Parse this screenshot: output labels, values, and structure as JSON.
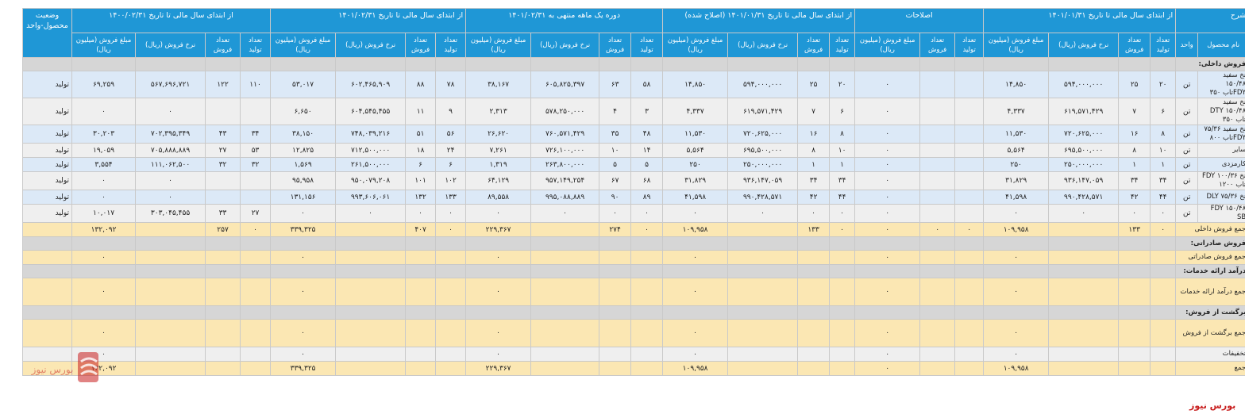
{
  "headers": {
    "sharh": "شرح",
    "adj_from_start": "از ابتدای سال مالی تا تاریخ ۱۴۰۱/۰۱/۳۱",
    "corrections": "اصلاحات",
    "corrected": "از ابتدای سال مالی تا تاریخ ۱۴۰۱/۰۱/۳۱ (اصلاح شده)",
    "one_month": "دوره یک ماهه منتهی به ۱۴۰۱/۰۲/۳۱",
    "to_date": "از ابتدای سال مالی تا تاریخ ۱۴۰۱/۰۲/۳۱",
    "prev_year": "از ابتدای سال مالی تا تاریخ ۱۴۰۰/۰۲/۳۱",
    "status": "وضعیت محصول-واحد"
  },
  "subheaders": {
    "product_name": "نام محصول",
    "unit": "واحد",
    "prod_qty": "تعداد تولید",
    "sale_qty": "تعداد فروش",
    "rate": "نرخ فروش (ریال)",
    "amount": "مبلغ فروش (میلیون ریال)"
  },
  "sections": {
    "domestic": "فروش داخلی:",
    "export": "فروش صادراتی:",
    "services": "درآمد ارائه خدمات:",
    "returns": "برگشت از فروش:"
  },
  "rows": [
    {
      "name": "نخ سفید ۱۵۰/۴۸ FDYتاب ۳۵۰",
      "unit": "تن",
      "c": [
        "۲۰",
        "۲۵",
        "۵۹۴,۰۰۰,۰۰۰",
        "۱۴,۸۵۰",
        "",
        "",
        "۰",
        "۲۰",
        "۲۵",
        "۵۹۴,۰۰۰,۰۰۰",
        "۱۴,۸۵۰",
        "۵۸",
        "۶۳",
        "۶۰۵,۸۲۵,۳۹۷",
        "۳۸,۱۶۷",
        "۷۸",
        "۸۸",
        "۶۰۲,۴۶۵,۹۰۹",
        "۵۳,۰۱۷",
        "۱۱۰",
        "۱۲۲",
        "۵۶۷,۶۹۶,۷۲۱",
        "۶۹,۲۵۹"
      ],
      "status": "تولید",
      "style": "blue"
    },
    {
      "name": "نخ سفید ۱۵۰/۴۸ DTY تاب ۳۵۰",
      "unit": "تن",
      "c": [
        "۶",
        "۷",
        "۶۱۹,۵۷۱,۴۲۹",
        "۴,۳۳۷",
        "",
        "",
        "۰",
        "۶",
        "۷",
        "۶۱۹,۵۷۱,۴۲۹",
        "۴,۳۳۷",
        "۳",
        "۴",
        "۵۷۸,۲۵۰,۰۰۰",
        "۲,۳۱۳",
        "۹",
        "۱۱",
        "۶۰۴,۵۴۵,۴۵۵",
        "۶,۶۵۰",
        "",
        "",
        "۰",
        "۰"
      ],
      "status": "تولید",
      "style": "gray"
    },
    {
      "name": "نخ سفید ۷۵/۳۶ FDYتاب ۸۰۰",
      "unit": "تن",
      "c": [
        "۸",
        "۱۶",
        "۷۲۰,۶۲۵,۰۰۰",
        "۱۱,۵۳۰",
        "",
        "",
        "۰",
        "۸",
        "۱۶",
        "۷۲۰,۶۲۵,۰۰۰",
        "۱۱,۵۳۰",
        "۴۸",
        "۳۵",
        "۷۶۰,۵۷۱,۴۲۹",
        "۲۶,۶۲۰",
        "۵۶",
        "۵۱",
        "۷۴۸,۰۳۹,۲۱۶",
        "۳۸,۱۵۰",
        "۳۴",
        "۴۳",
        "۷۰۲,۳۹۵,۳۴۹",
        "۳۰,۲۰۳"
      ],
      "status": "تولید",
      "style": "blue"
    },
    {
      "name": "سایر",
      "unit": "تن",
      "c": [
        "۱۰",
        "۸",
        "۶۹۵,۵۰۰,۰۰۰",
        "۵,۵۶۴",
        "",
        "",
        "۰",
        "۱۰",
        "۸",
        "۶۹۵,۵۰۰,۰۰۰",
        "۵,۵۶۴",
        "۱۴",
        "۱۰",
        "۷۲۶,۱۰۰,۰۰۰",
        "۷,۲۶۱",
        "۲۴",
        "۱۸",
        "۷۱۲,۵۰۰,۰۰۰",
        "۱۲,۸۲۵",
        "۵۳",
        "۲۷",
        "۷۰۵,۸۸۸,۸۸۹",
        "۱۹,۰۵۹"
      ],
      "status": "تولید",
      "style": "gray"
    },
    {
      "name": "کارمزدی",
      "unit": "تن",
      "c": [
        "۱",
        "۱",
        "۲۵۰,۰۰۰,۰۰۰",
        "۲۵۰",
        "",
        "",
        "۰",
        "۱",
        "۱",
        "۲۵۰,۰۰۰,۰۰۰",
        "۲۵۰",
        "۵",
        "۵",
        "۲۶۳,۸۰۰,۰۰۰",
        "۱,۳۱۹",
        "۶",
        "۶",
        "۲۶۱,۵۰۰,۰۰۰",
        "۱,۵۶۹",
        "۳۲",
        "۳۲",
        "۱۱۱,۰۶۲,۵۰۰",
        "۳,۵۵۴"
      ],
      "status": "تولید",
      "style": "blue"
    },
    {
      "name": "نخ ۱۰۰/۳۶ FDY تاب ۱۲۰۰",
      "unit": "تن",
      "c": [
        "۳۴",
        "۳۴",
        "۹۳۶,۱۴۷,۰۵۹",
        "۳۱,۸۲۹",
        "",
        "",
        "۰",
        "۳۴",
        "۳۴",
        "۹۳۶,۱۴۷,۰۵۹",
        "۳۱,۸۲۹",
        "۶۸",
        "۶۷",
        "۹۵۷,۱۴۹,۲۵۴",
        "۶۴,۱۲۹",
        "۱۰۲",
        "۱۰۱",
        "۹۵۰,۰۷۹,۲۰۸",
        "۹۵,۹۵۸",
        "",
        "",
        "۰",
        "۰"
      ],
      "status": "تولید",
      "style": "gray"
    },
    {
      "name": "نخ DLY ۷۵/۳۶",
      "unit": "تن",
      "c": [
        "۴۴",
        "۴۲",
        "۹۹۰,۴۲۸,۵۷۱",
        "۴۱,۵۹۸",
        "",
        "",
        "۰",
        "۴۴",
        "۴۲",
        "۹۹۰,۴۲۸,۵۷۱",
        "۴۱,۵۹۸",
        "۸۹",
        "۹۰",
        "۹۹۵,۰۸۸,۸۸۹",
        "۸۹,۵۵۸",
        "۱۳۳",
        "۱۳۲",
        "۹۹۳,۶۰۶,۰۶۱",
        "۱۳۱,۱۵۶",
        "",
        "",
        "۰",
        "۰"
      ],
      "status": "تولید",
      "style": "blue"
    },
    {
      "name": "FDY ۱۵۰/۴۸ SB",
      "unit": "تن",
      "c": [
        "۰",
        "۰",
        "۰",
        "۰",
        "",
        "",
        "۰",
        "۰",
        "۰",
        "۰",
        "۰",
        "۰",
        "۰",
        "۰",
        "۰",
        "۰",
        "۰",
        "۰",
        "۰",
        "۲۷",
        "۳۳",
        "۳۰۳,۰۴۵,۴۵۵",
        "۱۰,۰۱۷"
      ],
      "status": "تولید",
      "style": "gray"
    }
  ],
  "domestic_total": {
    "name": "جمع فروش داخلی",
    "c": [
      "۰",
      "۱۳۳",
      "",
      "۱۰۹,۹۵۸",
      "۰",
      "۰",
      "۰",
      "۰",
      "۱۳۳",
      "",
      "۱۰۹,۹۵۸",
      "۰",
      "۲۷۴",
      "",
      "۲۲۹,۳۶۷",
      "۰",
      "۴۰۷",
      "",
      "۳۳۹,۳۲۵",
      "۰",
      "۲۵۷",
      "",
      "۱۳۲,۰۹۲"
    ]
  },
  "export_total": {
    "name": "جمع فروش صادراتی",
    "c": [
      "",
      "",
      "",
      "۰",
      "",
      "",
      "۰",
      "",
      "",
      "",
      "۰",
      "",
      "",
      "",
      "۰",
      "",
      "",
      "",
      "۰",
      "",
      "",
      "",
      "۰"
    ]
  },
  "services_total": {
    "name": "جمع درآمد ارائه خدمات",
    "c": [
      "",
      "",
      "",
      "۰",
      "",
      "",
      "۰",
      "",
      "",
      "",
      "۰",
      "",
      "",
      "",
      "۰",
      "",
      "",
      "",
      "۰",
      "",
      "",
      "",
      "۰"
    ]
  },
  "returns_total": {
    "name": "جمع برگشت از فروش",
    "c": [
      "",
      "",
      "",
      "۰",
      "",
      "",
      "۰",
      "",
      "",
      "",
      "۰",
      "",
      "",
      "",
      "۰",
      "",
      "",
      "",
      "۰",
      "",
      "",
      "",
      "۰"
    ]
  },
  "discounts": {
    "name": "تخفیفات",
    "c": [
      "",
      "",
      "",
      "۰",
      "",
      "",
      "۰",
      "",
      "",
      "",
      "۰",
      "",
      "",
      "",
      "۰",
      "",
      "",
      "",
      "۰",
      "",
      "",
      "",
      "۰"
    ]
  },
  "grand_total": {
    "name": "جمع",
    "c": [
      "",
      "",
      "",
      "۱۰۹,۹۵۸",
      "",
      "",
      "۰",
      "",
      "",
      "",
      "۱۰۹,۹۵۸",
      "",
      "",
      "",
      "۲۲۹,۳۶۷",
      "",
      "",
      "",
      "۳۳۹,۳۲۵",
      "",
      "",
      "",
      "۱۳۲,۰۹۲"
    ]
  },
  "watermark": "بورس نیوز",
  "brand_text": "بورس نیوز",
  "colors": {
    "header": "#1f97d6",
    "row_blue": "#dce9f7",
    "row_total": "#fbe7b3",
    "brand": "#c81e1e"
  }
}
